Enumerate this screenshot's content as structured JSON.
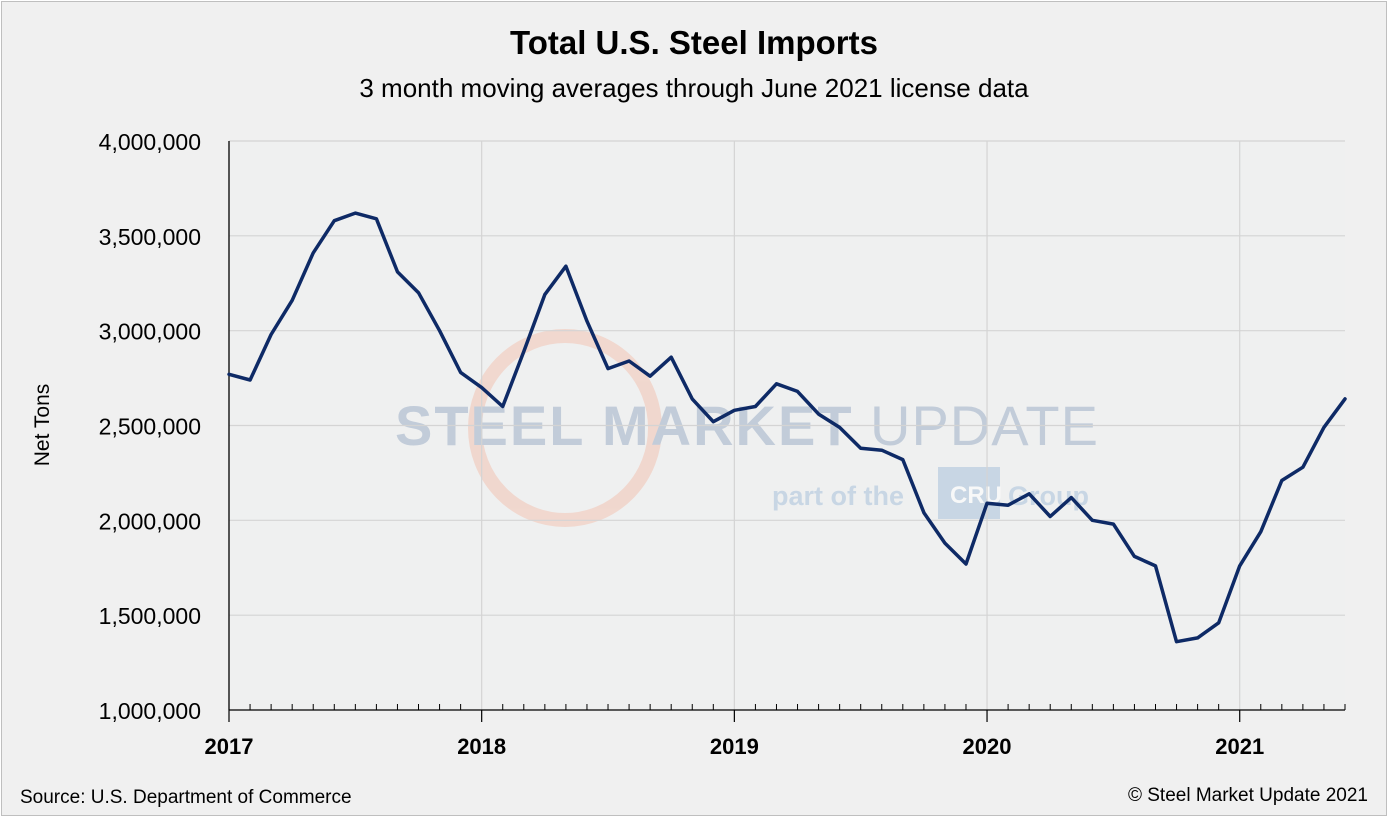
{
  "chart_data": {
    "type": "line",
    "title": "Total U.S. Steel Imports",
    "subtitle": "3 month moving averages through June 2021 license data",
    "ylabel": "Net Tons",
    "xlabel": "",
    "ylim": [
      1000000,
      4000000
    ],
    "yticks": [
      1000000,
      1500000,
      2000000,
      2500000,
      3000000,
      3500000,
      4000000
    ],
    "ytick_labels": [
      "1,000,000",
      "1,500,000",
      "2,000,000",
      "2,500,000",
      "3,000,000",
      "3,500,000",
      "4,000,000"
    ],
    "xtick_labels": [
      "2017",
      "2018",
      "2019",
      "2020",
      "2021"
    ],
    "grid": true,
    "line_color": "#0e2a66",
    "series": [
      {
        "name": "",
        "x": [
          "2017-01",
          "2017-02",
          "2017-03",
          "2017-04",
          "2017-05",
          "2017-06",
          "2017-07",
          "2017-08",
          "2017-09",
          "2017-10",
          "2017-11",
          "2017-12",
          "2018-01",
          "2018-02",
          "2018-03",
          "2018-04",
          "2018-05",
          "2018-06",
          "2018-07",
          "2018-08",
          "2018-09",
          "2018-10",
          "2018-11",
          "2018-12",
          "2019-01",
          "2019-02",
          "2019-03",
          "2019-04",
          "2019-05",
          "2019-06",
          "2019-07",
          "2019-08",
          "2019-09",
          "2019-10",
          "2019-11",
          "2019-12",
          "2020-01",
          "2020-02",
          "2020-03",
          "2020-04",
          "2020-05",
          "2020-06",
          "2020-07",
          "2020-08",
          "2020-09",
          "2020-10",
          "2020-11",
          "2020-12",
          "2021-01",
          "2021-02",
          "2021-03",
          "2021-04",
          "2021-05",
          "2021-06"
        ],
        "values": [
          2770000,
          2740000,
          2980000,
          3160000,
          3410000,
          3580000,
          3620000,
          3590000,
          3310000,
          3200000,
          3000000,
          2780000,
          2700000,
          2600000,
          2890000,
          3190000,
          3340000,
          3050000,
          2800000,
          2840000,
          2760000,
          2860000,
          2640000,
          2520000,
          2580000,
          2600000,
          2720000,
          2680000,
          2560000,
          2490000,
          2380000,
          2370000,
          2320000,
          2040000,
          1880000,
          1770000,
          2090000,
          2080000,
          2140000,
          2020000,
          2120000,
          2000000,
          1980000,
          1810000,
          1760000,
          1360000,
          1380000,
          1460000,
          1760000,
          1940000,
          2210000,
          2280000,
          2490000,
          2640000
        ]
      }
    ]
  },
  "watermark": {
    "brand_left": "STEEL MARKET",
    "brand_right": "UPDATE",
    "tagline_pre": "part of the",
    "tagline_logo": "CRU",
    "tagline_post": "Group"
  },
  "footer": {
    "source": "Source: U.S. Department of Commerce",
    "copyright": "© Steel Market Update 2021"
  }
}
